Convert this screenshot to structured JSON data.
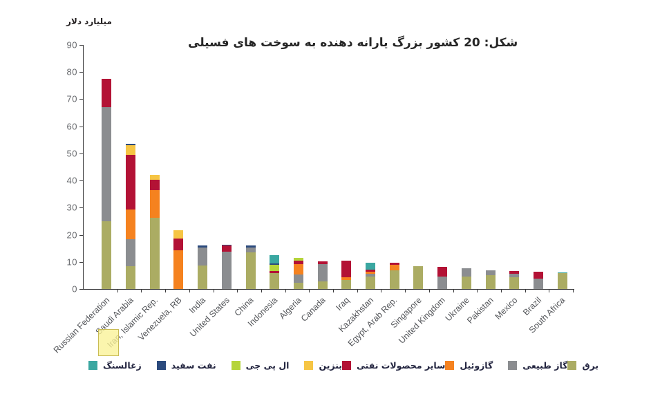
{
  "header": {
    "unit_label": "میلیارد دلار",
    "title": "شکل: 20 کشور بزرگ یارانه دهنده به سوخت های فسیلی"
  },
  "annotations": {
    "iran_highlight_note": "yellow highlight box over the word Iran in the x-axis label"
  },
  "chart_data": {
    "type": "bar",
    "stacked": true,
    "title": "شکل: 20 کشور بزرگ یارانه دهنده به سوخت های فسیلی",
    "xlabel": "",
    "ylabel": "میلیارد دلار",
    "ylim": [
      0,
      90
    ],
    "yticks": [
      0,
      10,
      20,
      30,
      40,
      50,
      60,
      70,
      80,
      90
    ],
    "grid": false,
    "legend_position": "bottom",
    "categories": [
      "Russian Federation",
      "Saudi Arabia",
      "Iran, Islamic Rep.",
      "Venezuela, RB",
      "India",
      "United States",
      "China",
      "Indonesia",
      "Algeria",
      "Canada",
      "Iraq",
      "Kazakhstan",
      "Egypt, Arab Rep.",
      "Singapore",
      "United Kingdom",
      "Ukraine",
      "Pakistan",
      "Mexico",
      "Brazil",
      "South Africa"
    ],
    "series": [
      {
        "key": "electricity",
        "name": "برق",
        "color": "#abac63",
        "values": [
          25.1,
          8.5,
          26.3,
          0,
          8.8,
          0,
          13.6,
          5.9,
          2.2,
          2.8,
          3.3,
          4.7,
          7.0,
          8.5,
          0,
          4.6,
          5.0,
          4.4,
          0,
          5.8
        ]
      },
      {
        "key": "natural-gas",
        "name": "گاز طبیعی",
        "color": "#8b8d90",
        "values": [
          42.0,
          10.0,
          0,
          0,
          6.4,
          13.9,
          1.8,
          0,
          3.2,
          6.5,
          0,
          1.0,
          0,
          0,
          4.5,
          3.1,
          2.0,
          1.3,
          3.8,
          0
        ]
      },
      {
        "key": "diesel",
        "name": "گازوئیل",
        "color": "#f5821f",
        "values": [
          0,
          10.8,
          10.2,
          14.4,
          0,
          0,
          0,
          0,
          3.8,
          0,
          1.1,
          0.8,
          1.8,
          0,
          0,
          0,
          0,
          0,
          0,
          0
        ]
      },
      {
        "key": "other-petroleum-products",
        "name": "سایر محصولات نفتی",
        "color": "#b31235",
        "values": [
          10.5,
          20.2,
          3.8,
          4.2,
          0,
          2.1,
          0,
          0.8,
          1.2,
          1.0,
          6.1,
          0.7,
          0.8,
          0,
          3.7,
          0,
          0,
          1.0,
          2.5,
          0
        ]
      },
      {
        "key": "gasoline",
        "name": "بنزین",
        "color": "#f6c544",
        "values": [
          0,
          3.5,
          1.7,
          3.0,
          0,
          0,
          0,
          0,
          0,
          0,
          0,
          0,
          0,
          0,
          0,
          0,
          0,
          0,
          0,
          0
        ]
      },
      {
        "key": "lpg",
        "name": "ال پی جی",
        "color": "#b5d43a",
        "values": [
          0,
          0,
          0,
          0,
          0,
          0,
          0,
          2.3,
          1.0,
          0,
          0,
          0,
          0,
          0,
          0,
          0,
          0,
          0,
          0,
          0
        ]
      },
      {
        "key": "kerosene",
        "name": "نفت سفید",
        "color": "#2b4a7d",
        "values": [
          0,
          0.7,
          0,
          0,
          1.0,
          0.4,
          0.6,
          0.4,
          0,
          0,
          0,
          0,
          0,
          0,
          0,
          0,
          0,
          0,
          0,
          0
        ]
      },
      {
        "key": "coal",
        "name": "زغالسنگ",
        "color": "#3aa7a1",
        "values": [
          0,
          0,
          0,
          0,
          0,
          0,
          0,
          3.0,
          0,
          0,
          0,
          2.6,
          0,
          0,
          0,
          0,
          0,
          0,
          0,
          0.4
        ]
      }
    ],
    "stack_order_bottom_to_top": [
      "برق",
      "گاز طبیعی",
      "گازوئیل",
      "سایر محصولات نفتی",
      "بنزین",
      "ال پی جی",
      "نفت سفید",
      "زغالسنگ"
    ],
    "legend_display_left_to_right": [
      {
        "key": "coal",
        "label": "زغالسنگ",
        "color": "#3aa7a1",
        "gap_after": "small"
      },
      {
        "key": "kerosene",
        "label": "نفت سفید",
        "color": "#2b4a7d",
        "gap_after": "small"
      },
      {
        "key": "lpg",
        "label": "ال پی جی",
        "color": "#b5d43a",
        "gap_after": "small"
      },
      {
        "key": "gasoline",
        "label": "بنزین",
        "color": "#f6c544",
        "gap_after": "large"
      },
      {
        "key": "other-petroleum-products",
        "label": "سایر محصولات نفتی",
        "color": "#b31235",
        "gap_after": "large"
      },
      {
        "key": "diesel",
        "label": "گازوئیل",
        "color": "#f5821f",
        "gap_after": "small"
      },
      {
        "key": "natural-gas",
        "label": "گاز طبیعی",
        "color": "#8b8d90",
        "gap_after": "large"
      },
      {
        "key": "electricity",
        "label": "برق",
        "color": "#abac63",
        "gap_after": "none"
      }
    ]
  }
}
